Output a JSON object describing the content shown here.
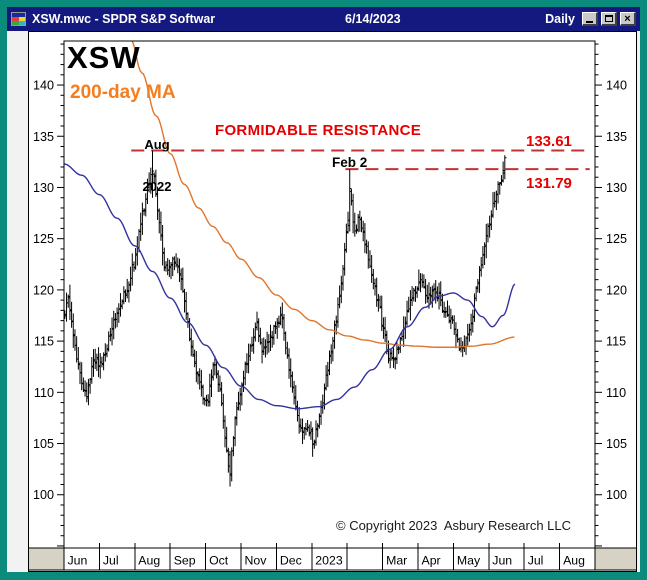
{
  "window": {
    "title": "XSW.mwc - SPDR S&P Softwar",
    "date": "6/14/2023",
    "periodicity": "Daily",
    "controls": [
      "minimize",
      "maximize",
      "close"
    ]
  },
  "chart": {
    "symbol_label": "XSW",
    "ma_label": "200-day MA",
    "aug_annotation_line1": "Aug",
    "aug_annotation_line2": "2022",
    "resistance_text": "FORMIDABLE RESISTANCE",
    "feb_annotation": "Feb 2",
    "upper_level_label": "133.61",
    "lower_level_label": "131.79",
    "copyright": "© Copyright 2023  Asbury Research LLC"
  },
  "colors": {
    "desktop_teal": "#0b8b7c",
    "titlebar_navy": "#14197f",
    "title_text": "#ffffff",
    "annotation_red": "#e60000",
    "dashed_line_red": "#c23333",
    "ma200_orange": "#e0762c",
    "ma200_label_orange": "#f57d1e",
    "ma50_blue": "#3333a0",
    "bar_black": "#000000",
    "strip_gray": "#d6d2c6"
  },
  "chart_data": {
    "type": "ohlc",
    "title": "XSW - SPDR S&P Software ETF, daily OHLC bars with 50-day (blue) and 200-day (orange) moving averages",
    "x_axis_months": [
      "Jun",
      "Jul",
      "Aug",
      "Sep",
      "Oct",
      "Nov",
      "Dec",
      "2023",
      "",
      "Mar",
      "Apr",
      "May",
      "Jun",
      "Jul",
      "Aug"
    ],
    "x_range_note": "Jun 2022 through Jun 14 2023; t measured in months from Jun 1 2022",
    "y_ticks": [
      140,
      135,
      130,
      125,
      120,
      115,
      110,
      105,
      100
    ],
    "y_range": [
      94.8,
      144.3
    ],
    "days_per_month": 21,
    "last_t": 12.45,
    "dash_t_end": 14.85,
    "resistance_levels": [
      {
        "price": 133.61,
        "t_start": 1.9,
        "label": "133.61"
      },
      {
        "price": 131.79,
        "t_start": 7.95,
        "label": "131.79"
      }
    ],
    "key_points": {
      "aug_2022_high": 133.61,
      "feb_2_2023_high": 131.79,
      "oct_2022_low": 100.8,
      "jun_14_2023_close": 132.9
    },
    "close_anchors": [
      [
        0,
        117.5
      ],
      [
        0.12,
        119.2
      ],
      [
        0.3,
        114.8
      ],
      [
        0.5,
        110.6
      ],
      [
        0.65,
        109.9
      ],
      [
        0.85,
        113.6
      ],
      [
        1.05,
        112.4
      ],
      [
        1.3,
        115.8
      ],
      [
        1.55,
        118.2
      ],
      [
        1.8,
        120.2
      ],
      [
        2.0,
        123.0
      ],
      [
        2.2,
        127.0
      ],
      [
        2.42,
        130.8
      ],
      [
        2.55,
        131.2
      ],
      [
        2.7,
        126.0
      ],
      [
        2.85,
        121.8
      ],
      [
        3.05,
        122.6
      ],
      [
        3.25,
        122.0
      ],
      [
        3.45,
        117.5
      ],
      [
        3.65,
        113.5
      ],
      [
        3.85,
        110.5
      ],
      [
        4.05,
        108.6
      ],
      [
        4.22,
        113.0
      ],
      [
        4.42,
        110.0
      ],
      [
        4.6,
        103.8
      ],
      [
        4.69,
        102.3
      ],
      [
        4.85,
        107.5
      ],
      [
        5.05,
        111.5
      ],
      [
        5.25,
        114.0
      ],
      [
        5.45,
        116.8
      ],
      [
        5.6,
        113.5
      ],
      [
        5.8,
        115.0
      ],
      [
        6.0,
        116.8
      ],
      [
        6.15,
        117.2
      ],
      [
        6.35,
        112.5
      ],
      [
        6.55,
        108.5
      ],
      [
        6.75,
        105.8
      ],
      [
        6.9,
        106.8
      ],
      [
        7.05,
        104.8
      ],
      [
        7.25,
        108.0
      ],
      [
        7.45,
        112.5
      ],
      [
        7.65,
        116.5
      ],
      [
        7.85,
        121.0
      ],
      [
        8.0,
        126.0
      ],
      [
        8.08,
        129.8
      ],
      [
        8.2,
        125.8
      ],
      [
        8.35,
        127.0
      ],
      [
        8.55,
        124.0
      ],
      [
        8.75,
        120.8
      ],
      [
        8.95,
        117.5
      ],
      [
        9.15,
        113.8
      ],
      [
        9.3,
        112.8
      ],
      [
        9.5,
        115.0
      ],
      [
        9.7,
        117.8
      ],
      [
        9.9,
        119.8
      ],
      [
        10.1,
        120.8
      ],
      [
        10.3,
        119.2
      ],
      [
        10.5,
        120.2
      ],
      [
        10.7,
        118.2
      ],
      [
        10.9,
        117.2
      ],
      [
        11.05,
        116.0
      ],
      [
        11.2,
        113.8
      ],
      [
        11.35,
        114.8
      ],
      [
        11.5,
        117.0
      ],
      [
        11.65,
        119.8
      ],
      [
        11.8,
        122.8
      ],
      [
        11.95,
        125.8
      ],
      [
        12.1,
        127.8
      ],
      [
        12.25,
        129.8
      ],
      [
        12.38,
        131.2
      ],
      [
        12.45,
        132.8
      ]
    ],
    "forced_bars": [
      {
        "t": 2.5,
        "o": 129.8,
        "c": 131.6,
        "h": 133.61,
        "l": 129.0
      },
      {
        "t": 4.69,
        "o": 103.9,
        "c": 101.9,
        "h": 104.3,
        "l": 100.8
      },
      {
        "t": 8.07,
        "o": 126.3,
        "c": 129.9,
        "h": 131.79,
        "l": 125.7
      },
      {
        "t": 12.45,
        "o": 131.4,
        "c": 132.9,
        "h": 133.15,
        "l": 130.8
      }
    ],
    "ma50_anchors": [
      [
        0,
        132.3
      ],
      [
        0.5,
        131.2
      ],
      [
        1,
        129.3
      ],
      [
        1.5,
        127.0
      ],
      [
        2,
        124.3
      ],
      [
        2.5,
        121.8
      ],
      [
        3,
        119.2
      ],
      [
        3.5,
        116.8
      ],
      [
        4,
        114.6
      ],
      [
        4.5,
        112.4
      ],
      [
        5,
        110.6
      ],
      [
        5.5,
        109.3
      ],
      [
        6,
        108.7
      ],
      [
        6.6,
        108.4
      ],
      [
        7.2,
        108.6
      ],
      [
        7.7,
        109.3
      ],
      [
        8.2,
        110.5
      ],
      [
        8.7,
        112.2
      ],
      [
        9.2,
        114.2
      ],
      [
        9.7,
        116.4
      ],
      [
        10.2,
        118.3
      ],
      [
        10.6,
        119.4
      ],
      [
        11,
        119.7
      ],
      [
        11.4,
        119.0
      ],
      [
        11.8,
        117.4
      ],
      [
        12.1,
        116.4
      ],
      [
        12.4,
        117.5
      ],
      [
        12.75,
        120.6
      ]
    ],
    "ma200_anchors": [
      [
        1.88,
        144.5
      ],
      [
        2.2,
        141.2
      ],
      [
        2.6,
        137.0
      ],
      [
        3.0,
        133.3
      ],
      [
        3.4,
        130.3
      ],
      [
        3.8,
        128.0
      ],
      [
        4.2,
        126.2
      ],
      [
        4.6,
        124.6
      ],
      [
        5.0,
        123.0
      ],
      [
        5.5,
        121.2
      ],
      [
        6.0,
        119.5
      ],
      [
        6.5,
        118.1
      ],
      [
        7.0,
        117.0
      ],
      [
        7.5,
        116.1
      ],
      [
        8.0,
        115.5
      ],
      [
        8.5,
        115.1
      ],
      [
        9.0,
        114.8
      ],
      [
        9.5,
        114.6
      ],
      [
        10.0,
        114.5
      ],
      [
        10.5,
        114.4
      ],
      [
        11.0,
        114.4
      ],
      [
        11.5,
        114.5
      ],
      [
        12.0,
        114.7
      ],
      [
        12.75,
        115.4
      ]
    ]
  }
}
